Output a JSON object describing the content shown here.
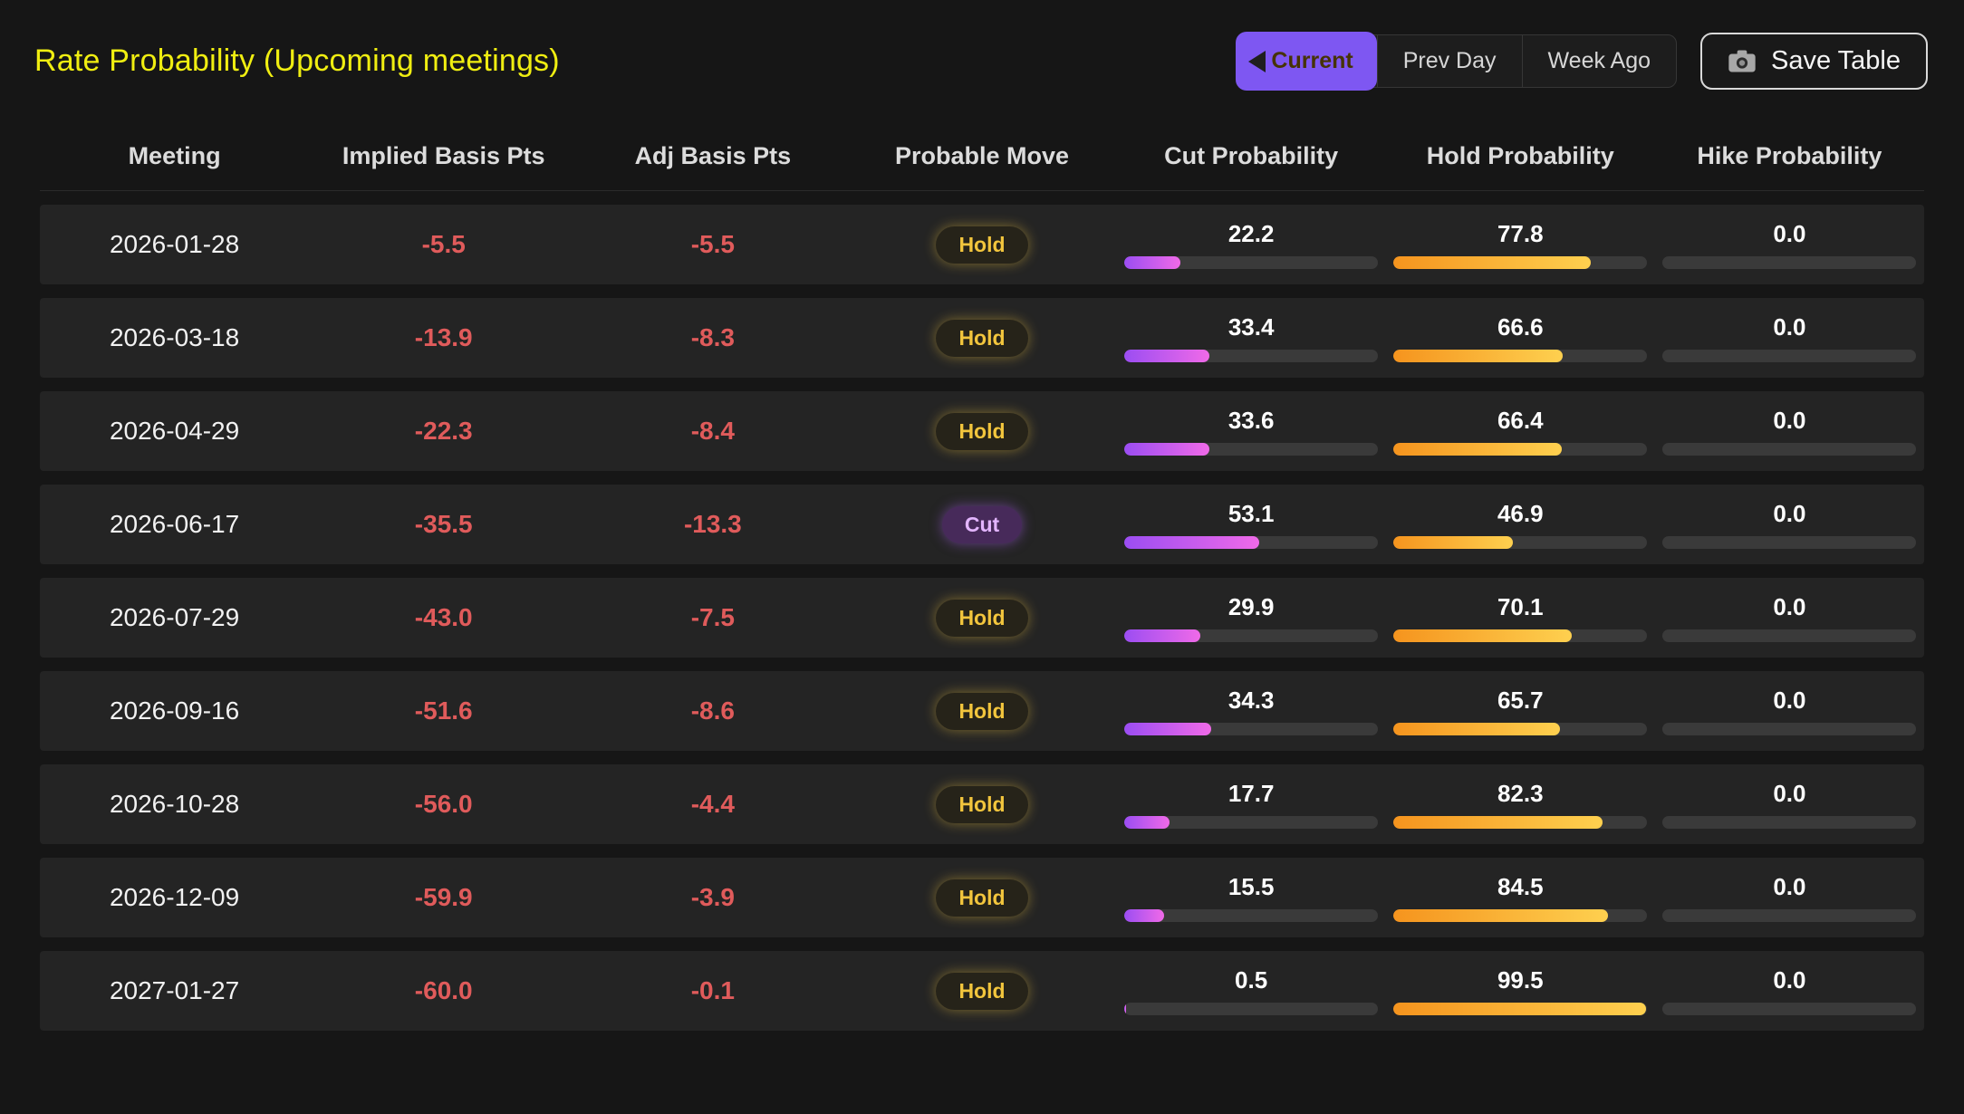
{
  "header": {
    "title": "Rate Probability (Upcoming meetings)",
    "toggle": [
      {
        "label": "Current",
        "active": true
      },
      {
        "label": "Prev Day",
        "active": false
      },
      {
        "label": "Week Ago",
        "active": false
      }
    ],
    "save_button": "Save Table"
  },
  "table": {
    "columns": [
      "Meeting",
      "Implied Basis Pts",
      "Adj Basis Pts",
      "Probable Move",
      "Cut Probability",
      "Hold Probability",
      "Hike Probability"
    ],
    "rows": [
      {
        "meeting": "2026-01-28",
        "implied": "-5.5",
        "adj": "-5.5",
        "move": "Hold",
        "cut": 22.2,
        "hold": 77.8,
        "hike": 0.0
      },
      {
        "meeting": "2026-03-18",
        "implied": "-13.9",
        "adj": "-8.3",
        "move": "Hold",
        "cut": 33.4,
        "hold": 66.6,
        "hike": 0.0
      },
      {
        "meeting": "2026-04-29",
        "implied": "-22.3",
        "adj": "-8.4",
        "move": "Hold",
        "cut": 33.6,
        "hold": 66.4,
        "hike": 0.0
      },
      {
        "meeting": "2026-06-17",
        "implied": "-35.5",
        "adj": "-13.3",
        "move": "Cut",
        "cut": 53.1,
        "hold": 46.9,
        "hike": 0.0
      },
      {
        "meeting": "2026-07-29",
        "implied": "-43.0",
        "adj": "-7.5",
        "move": "Hold",
        "cut": 29.9,
        "hold": 70.1,
        "hike": 0.0
      },
      {
        "meeting": "2026-09-16",
        "implied": "-51.6",
        "adj": "-8.6",
        "move": "Hold",
        "cut": 34.3,
        "hold": 65.7,
        "hike": 0.0
      },
      {
        "meeting": "2026-10-28",
        "implied": "-56.0",
        "adj": "-4.4",
        "move": "Hold",
        "cut": 17.7,
        "hold": 82.3,
        "hike": 0.0
      },
      {
        "meeting": "2026-12-09",
        "implied": "-59.9",
        "adj": "-3.9",
        "move": "Hold",
        "cut": 15.5,
        "hold": 84.5,
        "hike": 0.0
      },
      {
        "meeting": "2027-01-27",
        "implied": "-60.0",
        "adj": "-0.1",
        "move": "Hold",
        "cut": 0.5,
        "hold": 99.5,
        "hike": 0.0
      }
    ]
  },
  "colors": {
    "page-bg": "#161616",
    "row-bg": "#242424",
    "title": "#f0ee11",
    "accent": "#7e57f2",
    "red": "#e05b5b",
    "hold-text": "#f2c53d",
    "cut-text": "#e3b5ff",
    "cut-from": "#9b4df2",
    "cut-to": "#f06ae8",
    "hold-from": "#f5941e",
    "hold-to": "#fed04f",
    "track": "#3a3a3a"
  }
}
